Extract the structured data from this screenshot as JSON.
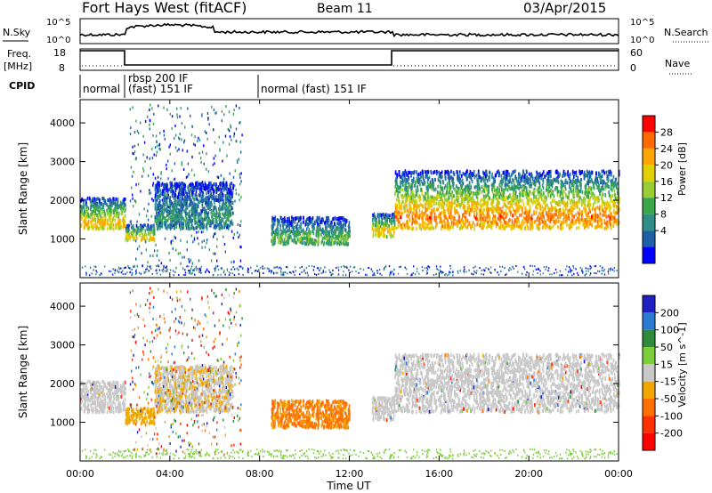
{
  "header": {
    "title": "Fort Hays West (fitACF)",
    "beam": "Beam 11",
    "date": "03/Apr/2015"
  },
  "top_panels": {
    "nsky_label": "N.Sky",
    "nsky_ticks": [
      "10^5",
      "10^0"
    ],
    "nsearch_label": "N.Search",
    "nsearch_ticks": [
      "10^5",
      "10^0"
    ],
    "freq_label": "Freq.",
    "freq_unit": "[MHz]",
    "freq_ticks": [
      "18",
      "8"
    ],
    "nave_label": "Nave",
    "nave_ticks": [
      "60",
      "0"
    ],
    "cpid_label": "CPID",
    "cpid_segments": [
      "normal",
      "rbsp 200 IF",
      "(fast) 151 IF",
      "normal (fast) 151 IF"
    ]
  },
  "chart_data": [
    {
      "type": "heatmap",
      "title": "",
      "quantity": "Power",
      "colorbar_label": "Power [dB]",
      "colorbar_ticks": [
        "28",
        "24",
        "20",
        "16",
        "12",
        "8",
        "4"
      ],
      "colorbar_colors": [
        "#ff0000",
        "#ff6a00",
        "#ffa500",
        "#e0d000",
        "#9acd32",
        "#3aa64a",
        "#2f8f88",
        "#1e5fa8",
        "#0000ff"
      ],
      "xlabel": "Time UT",
      "ylabel": "Slant Range [km]",
      "xlim": [
        0,
        24
      ],
      "ylim": [
        0,
        4600
      ],
      "y_ticks": [
        "4000",
        "3000",
        "2000",
        "1000"
      ],
      "x_ticks": [
        "00:00",
        "04:00",
        "08:00",
        "12:00",
        "16:00",
        "20:00",
        "00:00"
      ],
      "echo_regions": [
        {
          "t0": 0.0,
          "t1": 2.0,
          "r_lo": 1300,
          "r_hi": 2100,
          "peak": 20
        },
        {
          "t0": 2.0,
          "t1": 3.3,
          "r_lo": 1000,
          "r_hi": 1400,
          "peak": 20
        },
        {
          "t0": 3.3,
          "t1": 6.8,
          "r_lo": 1300,
          "r_hi": 2500,
          "peak": 8
        },
        {
          "t0": 8.5,
          "t1": 12.0,
          "r_lo": 900,
          "r_hi": 1600,
          "peak": 12
        },
        {
          "t0": 13.0,
          "t1": 14.0,
          "r_lo": 1100,
          "r_hi": 1700,
          "peak": 20
        },
        {
          "t0": 14.0,
          "t1": 24.0,
          "r_lo": 1300,
          "r_hi": 2800,
          "peak": 24
        }
      ]
    },
    {
      "type": "heatmap",
      "title": "",
      "quantity": "Velocity",
      "colorbar_label": "Velocity [m s^-1]",
      "colorbar_ticks": [
        "200",
        "100",
        "50",
        "15",
        "-15",
        "-50",
        "-100",
        "-200"
      ],
      "colorbar_colors": [
        "#2020c0",
        "#2a7bd0",
        "#2e8b3a",
        "#7ccd3a",
        "#c8c8c8",
        "#f0a800",
        "#ff7000",
        "#ff3000",
        "#ff0000"
      ],
      "xlabel": "Time UT",
      "ylabel": "Slant Range [km]",
      "xlim": [
        0,
        24
      ],
      "ylim": [
        0,
        4600
      ],
      "y_ticks": [
        "4000",
        "3000",
        "2000",
        "1000"
      ],
      "x_ticks": [
        "00:00",
        "04:00",
        "08:00",
        "12:00",
        "16:00",
        "20:00",
        "00:00"
      ]
    }
  ]
}
